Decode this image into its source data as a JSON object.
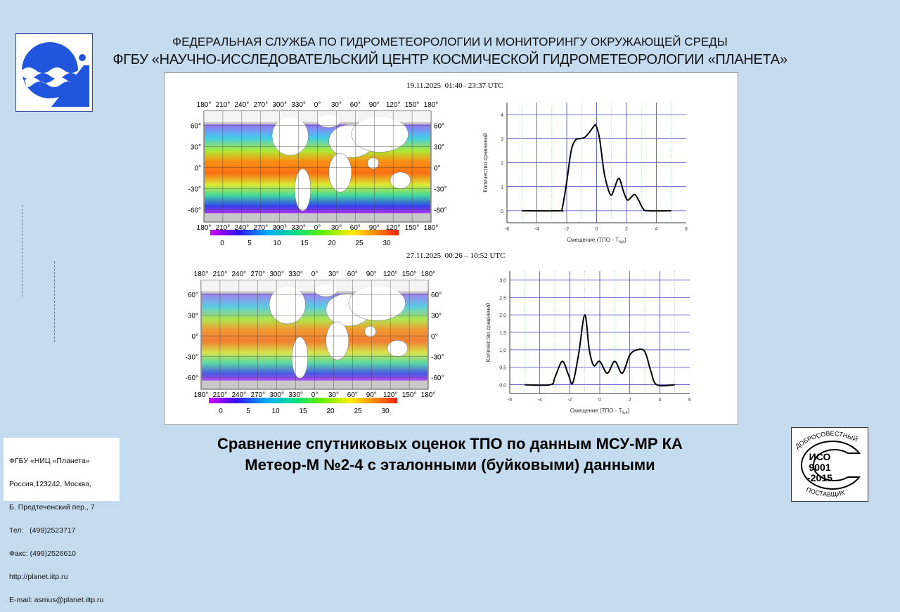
{
  "header": {
    "line1": "ФЕДЕРАЛЬНАЯ СЛУЖБА ПО ГИДРОМЕТЕОРОЛОГИИ И МОНИТОРИНГУ ОКРУЖАЮЩЕЙ СРЕДЫ",
    "line2": "ФГБУ «НАУЧНО-ИССЛЕДОВАТЕЛЬСКИЙ ЦЕНТР КОСМИЧЕСКОЙ ГИДРОМЕТЕОРОЛОГИИ «ПЛАНЕТА»"
  },
  "title": {
    "line1": "Сравнение спутниковых оценок ТПО по данным МСУ-МР КА",
    "line2": "Метеор-М №2-4 с эталонными (буйковыми) данными"
  },
  "address": [
    "ФГБУ «НИЦ «Планета»",
    "Россия,123242, Москва,",
    "Б. Предтеченский пер., 7",
    "Тел:   (499)2523717",
    "Факс: (499)2526610",
    "http://planet.iitp.ru",
    "E-mail: asmus@planet.iitp.ru"
  ],
  "iso_badge": {
    "top": "ДОБРОСОВЕСТНЫЙ",
    "bottom": "ПОСТАВЩИК",
    "l1": "ИСО",
    "l2": "9001",
    "l3": "-2015"
  },
  "maps": {
    "lon_ticks": [
      "180°",
      "210°",
      "240°",
      "270°",
      "300°",
      "330°",
      "0°",
      "30°",
      "60°",
      "90°",
      "120°",
      "150°",
      "180°"
    ],
    "lat_ticks": [
      "60°",
      "30°",
      "0°",
      "-30°",
      "-60°"
    ],
    "colorbar_ticks": [
      "0",
      "5",
      "10",
      "15",
      "20",
      "25",
      "30"
    ]
  },
  "chart_data": [
    {
      "type": "line",
      "date": "19.11.2025  01:40– 23:37 UTC",
      "xlabel": "Смещение (ТПО - Т",
      "xlabel_sub": "буй",
      "xlabel_end": ")",
      "ylabel": "Количество сравнений",
      "xlim": [
        -6,
        6
      ],
      "ylim": [
        -0.5,
        4.5
      ],
      "xticks": [
        "-6",
        "-4",
        "-2",
        "0",
        "2",
        "4",
        "6"
      ],
      "yticks": [
        "0",
        "1",
        "2",
        "3",
        "4"
      ],
      "ytick_values": [
        0,
        1,
        2,
        3,
        4
      ],
      "grid": true,
      "color": "#000000",
      "x": [
        -5,
        -2.5,
        -2.3,
        -2,
        -1.7,
        -1.4,
        -1.1,
        -0.8,
        -0.5,
        -0.2,
        -0.05,
        0.2,
        0.5,
        0.8,
        1.0,
        1.2,
        1.5,
        1.8,
        2.05,
        2.3,
        2.55,
        2.8,
        3.1,
        3.4,
        5
      ],
      "y": [
        0,
        0,
        0.1,
        1.2,
        2.5,
        2.95,
        3.0,
        3.05,
        3.25,
        3.5,
        3.55,
        3.0,
        1.6,
        0.85,
        0.65,
        0.95,
        1.35,
        0.8,
        0.45,
        0.55,
        0.68,
        0.45,
        0.1,
        0,
        0
      ]
    },
    {
      "type": "line",
      "date": "27.11.2025  00:26 – 10:52 UTC",
      "xlabel": "Смещение (ТПО - Т",
      "xlabel_sub": "буй",
      "xlabel_end": ")",
      "ylabel": "Количество сравнений",
      "xlim": [
        -6,
        6
      ],
      "ylim": [
        -0.25,
        3.25
      ],
      "xticks": [
        "-6",
        "-4",
        "-2",
        "0",
        "2",
        "4",
        "6"
      ],
      "yticks": [
        "0,0",
        "0,5",
        "1,0",
        "1,5",
        "2,0",
        "2,5",
        "3,0"
      ],
      "ytick_values": [
        0,
        0.5,
        1,
        1.5,
        2,
        2.5,
        3
      ],
      "grid": true,
      "color": "#000000",
      "x": [
        -5,
        -3.3,
        -3.0,
        -2.5,
        -2.1,
        -1.8,
        -1.4,
        -1.0,
        -0.7,
        -0.4,
        0,
        0.5,
        1.0,
        1.5,
        2.0,
        2.5,
        3.0,
        3.4,
        3.8,
        5
      ],
      "y": [
        0,
        0,
        0.2,
        0.67,
        0.3,
        0.05,
        0.9,
        2.0,
        1.0,
        0.55,
        0.67,
        0.33,
        0.67,
        0.33,
        0.85,
        1.0,
        0.95,
        0.4,
        0,
        0
      ]
    }
  ],
  "colors": {
    "background": "#c5dcf0",
    "grid": "#4444cc",
    "logo_blue": "#2255dd"
  }
}
